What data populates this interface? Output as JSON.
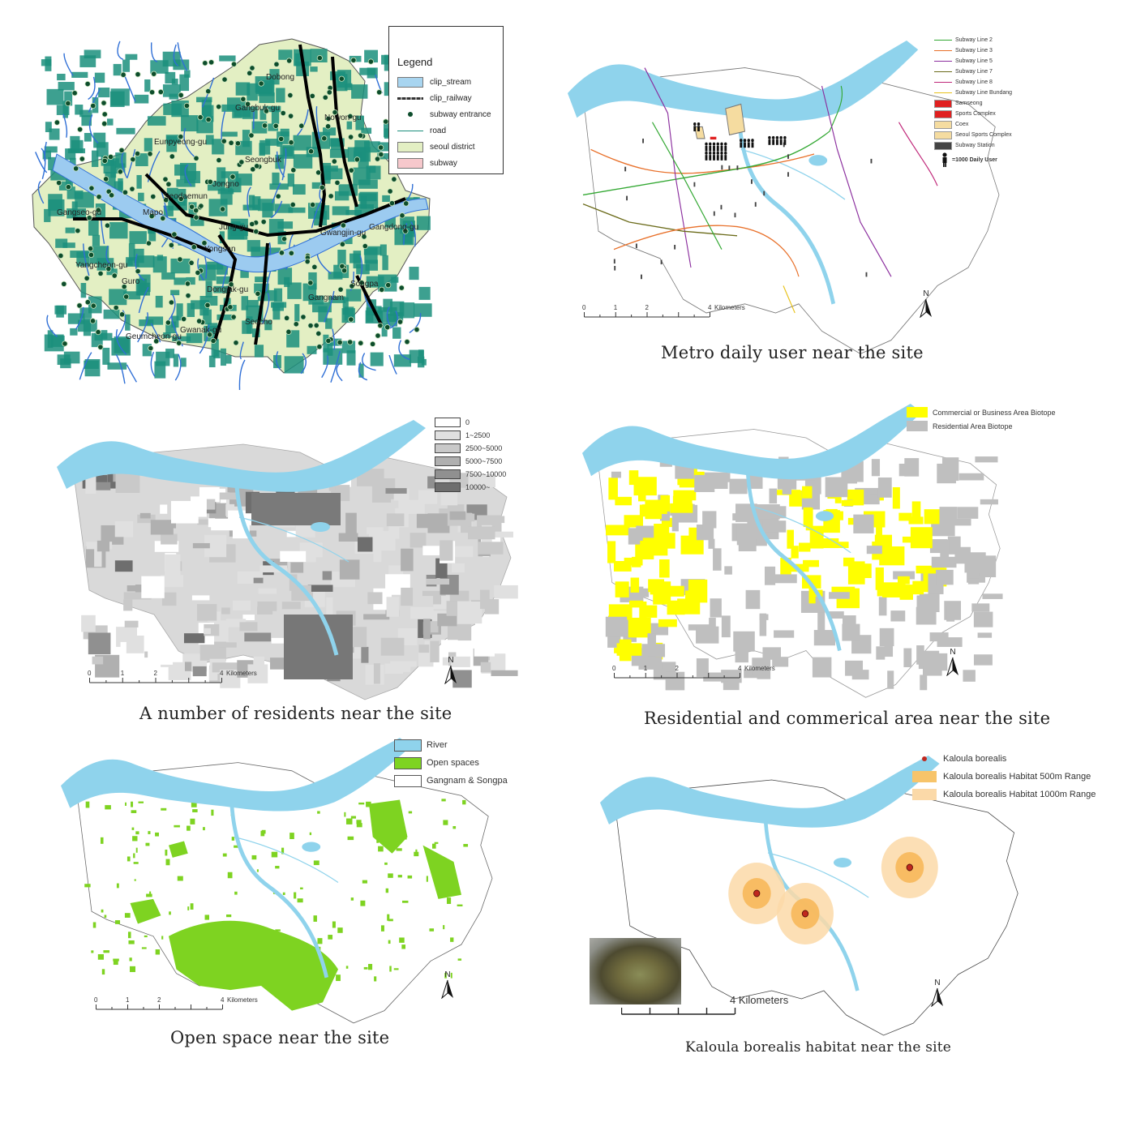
{
  "colors": {
    "river": "#8fd3ec",
    "open_space": "#7ed321",
    "commercial": "#ffff00",
    "residential_biotope": "#bfbfbf",
    "habitat_500": "#f7b85a",
    "habitat_1000": "#fbd9a8",
    "seoul_district": "#e3efc3",
    "seoul_road": "#1b8f7c",
    "seoul_stream": "#2f6fd6"
  },
  "seoul_map": {
    "legend": {
      "title": "Legend",
      "items": [
        {
          "label": "clip_stream",
          "color": "#a8d5f0",
          "kind": "box"
        },
        {
          "label": "clip_railway",
          "color": "#333333",
          "kind": "rail"
        },
        {
          "label": "subway entrance",
          "color": "#0d4d2c",
          "kind": "dot"
        },
        {
          "label": "road",
          "color": "#1b8f7c",
          "kind": "line"
        },
        {
          "label": "seoul district",
          "color": "#e3efc3",
          "kind": "box"
        },
        {
          "label": "subway",
          "color": "#f6c8cc",
          "kind": "box"
        }
      ]
    },
    "district_labels": [
      "Dobong",
      "Gangbuk-gu",
      "Nowon-gu",
      "Eunpyeong-gu",
      "Seongbuk",
      "Jongno",
      "Seodaemun",
      "Mapo",
      "Jung-gu",
      "Gwangjin-gu",
      "Gangseo-gu",
      "Yangcheon-gu",
      "Yongsan",
      "Guro",
      "Dongjak-gu",
      "Gangnam",
      "Songpa",
      "Gwanak-gu",
      "Seocho",
      "Geumcheon-gu",
      "Gangdong-gu"
    ]
  },
  "metro_map": {
    "caption": "Metro daily user near the site",
    "legend": [
      {
        "label": "Subway Line 2",
        "color": "#33a833",
        "kind": "line"
      },
      {
        "label": "Subway Line 3",
        "color": "#e8702a",
        "kind": "line"
      },
      {
        "label": "Subway Line 5",
        "color": "#8b2e9e",
        "kind": "line"
      },
      {
        "label": "Subway Line 7",
        "color": "#6b6b1a",
        "kind": "line"
      },
      {
        "label": "Subway Line 8",
        "color": "#c0287a",
        "kind": "line"
      },
      {
        "label": "Subway Line Bundang",
        "color": "#e8c21a",
        "kind": "line"
      },
      {
        "label": "Samseong",
        "color": "#e02020",
        "kind": "box"
      },
      {
        "label": "Sports Complex",
        "color": "#e02020",
        "kind": "box"
      },
      {
        "label": "Coex",
        "color": "#f5dca0",
        "kind": "box"
      },
      {
        "label": "Seoul Sports Complex",
        "color": "#f5dca0",
        "kind": "box"
      },
      {
        "label": "Subway Station",
        "color": "#444444",
        "kind": "box"
      }
    ],
    "user_note": "=1000 Daily User",
    "scale": {
      "ticks": [
        "0",
        "1",
        "2",
        "4"
      ],
      "unit": "Kilometers"
    },
    "north": "N"
  },
  "residents_map": {
    "caption": "A number of residents near the site",
    "legend": [
      {
        "label": "0",
        "color": "#ffffff"
      },
      {
        "label": "1~2500",
        "color": "#e0e0e0"
      },
      {
        "label": "2500~5000",
        "color": "#c9c9c9"
      },
      {
        "label": "5000~7500",
        "color": "#b0b0b0"
      },
      {
        "label": "7500~10000",
        "color": "#909090"
      },
      {
        "label": "10000~",
        "color": "#6e6e6e"
      }
    ],
    "scale": {
      "ticks": [
        "0",
        "1",
        "2",
        "4"
      ],
      "unit": "Kilometers"
    },
    "north": "N"
  },
  "landuse_map": {
    "caption": "Residential and commerical area near the site",
    "legend": [
      {
        "label": "Commercial or Business Area Biotope",
        "color": "#ffff00"
      },
      {
        "label": "Residential Area Biotope",
        "color": "#bfbfbf"
      }
    ],
    "scale": {
      "ticks": [
        "0",
        "1",
        "2",
        "4"
      ],
      "unit": "Kilometers"
    },
    "north": "N"
  },
  "openspace_map": {
    "caption": "Open space near the site",
    "legend": [
      {
        "label": "River",
        "color": "#8fd3ec"
      },
      {
        "label": "Open spaces",
        "color": "#7ed321"
      },
      {
        "label": "Gangnam & Songpa",
        "color": "#ffffff"
      }
    ],
    "scale": {
      "ticks": [
        "0",
        "1",
        "2",
        "4"
      ],
      "unit": "Kilometers"
    },
    "north": "N"
  },
  "habitat_map": {
    "caption": "Kaloula borealis habitat near the site",
    "legend": [
      {
        "label": "Kaloula borealis",
        "color": "#c0281e",
        "kind": "dot"
      },
      {
        "label": "Kaloula borealis Habitat 500m Range",
        "color": "#f7c46a",
        "kind": "box"
      },
      {
        "label": "Kaloula borealis Habitat 1000m Range",
        "color": "#fbd9a8",
        "kind": "box"
      }
    ],
    "scale_label": "4 Kilometers",
    "north": "N"
  }
}
